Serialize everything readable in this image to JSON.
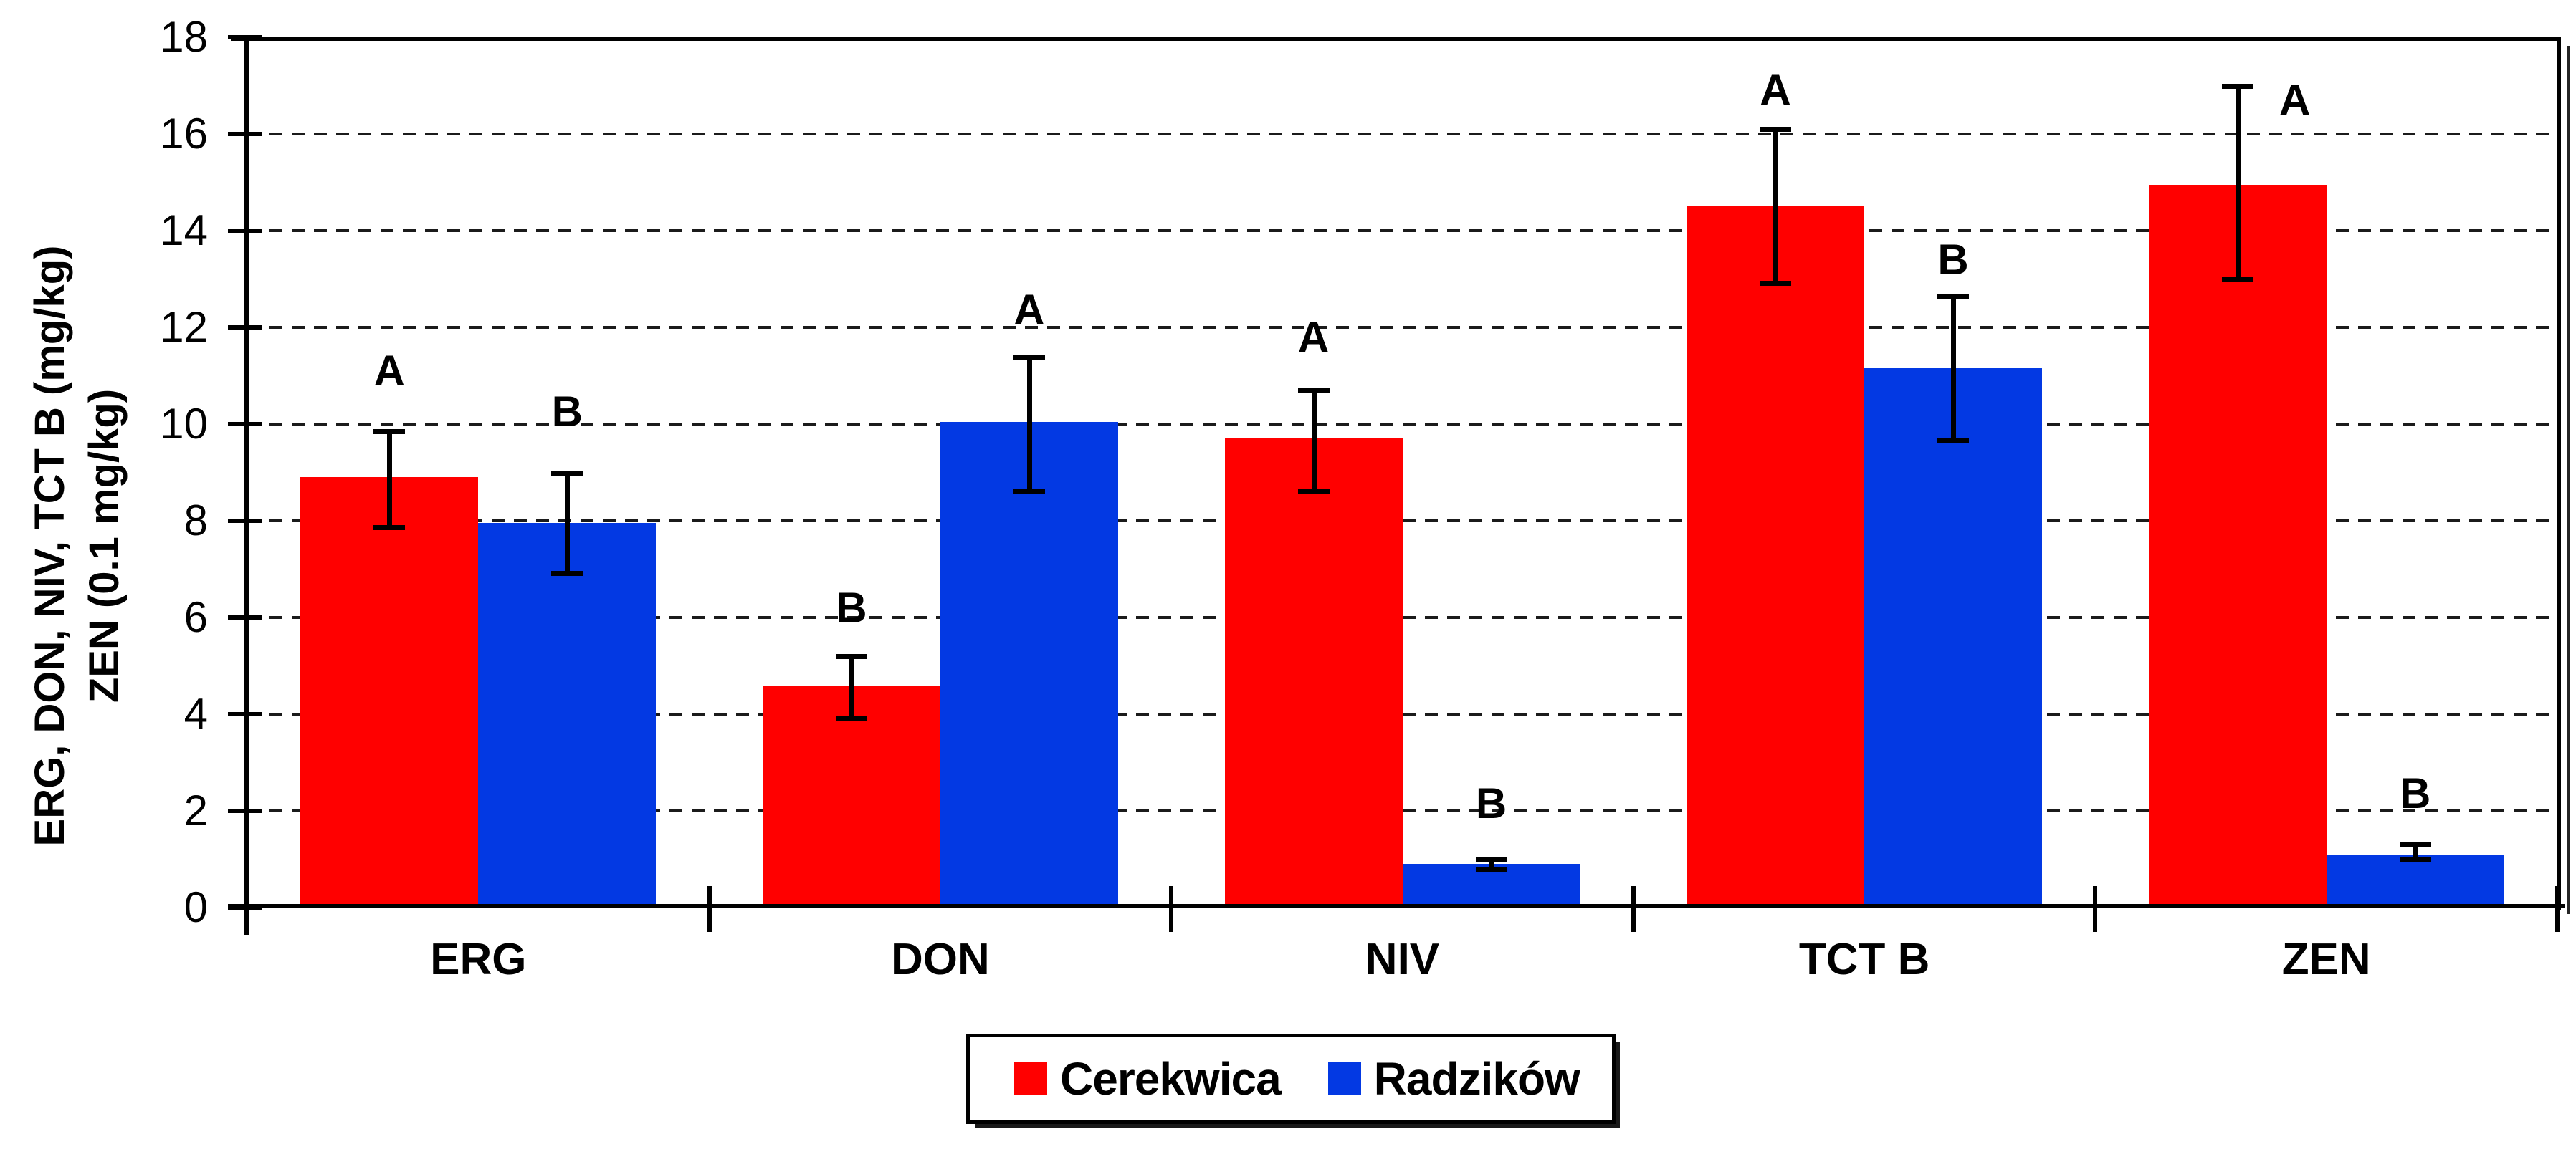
{
  "figure": {
    "background": "#ffffff",
    "text_color": "#000000"
  },
  "chart_data": {
    "type": "bar",
    "title": "",
    "categories": [
      "ERG",
      "DON",
      "NIV",
      "TCT B",
      "ZEN"
    ],
    "category_ids": [
      "erg",
      "don",
      "niv",
      "tct-b",
      "zen"
    ],
    "series": [
      {
        "name": "Cerekwica",
        "id": "cerekwica",
        "color": "#FF0000",
        "values": [
          8.9,
          4.6,
          9.7,
          14.5,
          14.95
        ],
        "error_low": [
          7.85,
          3.9,
          8.6,
          12.9,
          13.0
        ],
        "error_high": [
          9.85,
          5.2,
          10.7,
          16.1,
          17.0
        ],
        "letters": [
          "A",
          "B",
          "A",
          "A",
          "A"
        ],
        "letter_y": [
          11.1,
          6.2,
          11.8,
          16.9,
          16.7
        ],
        "letter_dx": [
          0,
          0,
          0,
          0,
          80
        ]
      },
      {
        "name": "Radzików",
        "id": "radzikow",
        "color": "#0339E3",
        "values": [
          7.95,
          10.05,
          0.9,
          11.15,
          1.1
        ],
        "error_low": [
          6.9,
          8.6,
          0.78,
          9.65,
          1.0
        ],
        "error_high": [
          9.0,
          11.4,
          1.0,
          12.65,
          1.3
        ],
        "letters": [
          "B",
          "A",
          "B",
          "B",
          "B"
        ],
        "letter_y": [
          10.25,
          12.35,
          2.15,
          13.4,
          2.35
        ],
        "letter_dx": [
          0,
          0,
          0,
          0,
          0
        ]
      }
    ],
    "ylabel_line1": "ERG, DON, NIV, TCT B (mg/kg)",
    "ylabel_line2": "ZEN (0.1 mg/kg)",
    "ylim": [
      0,
      18
    ],
    "yticks": [
      0,
      2,
      4,
      6,
      8,
      10,
      12,
      14,
      16,
      18
    ],
    "grid": "horizontal dashed every 2 units",
    "legend_position": "bottom-center",
    "error_bar_color": "#000000",
    "significance_letter_style": "bold A/B above error bars"
  },
  "legend": {
    "items": [
      {
        "label": "Cerekwica",
        "color": "#FF0000"
      },
      {
        "label": "Radzików",
        "color": "#0339E3"
      }
    ]
  }
}
